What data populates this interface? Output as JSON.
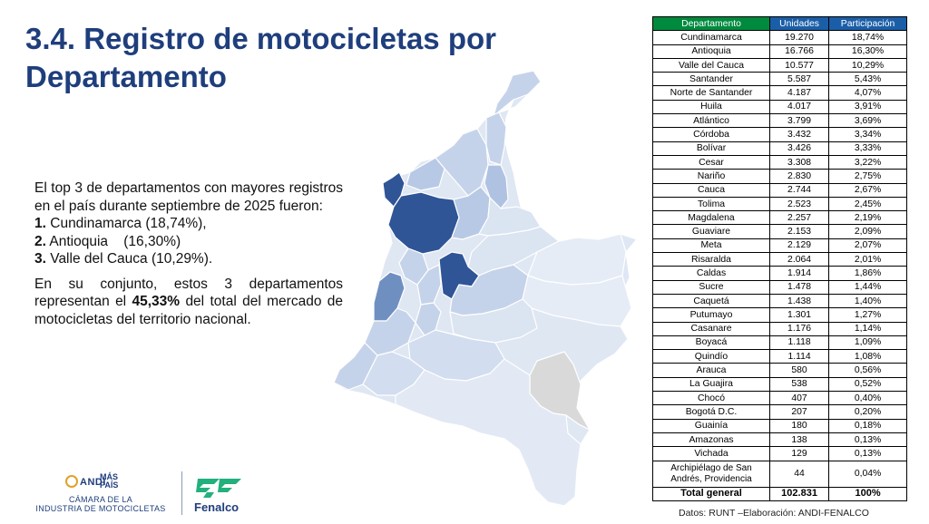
{
  "title": "3.4. Registro de motocicletas por Departamento",
  "intro": "El top 3 de departamentos con mayores registros en el país durante septiembre de 2025 fueron:",
  "top3": [
    {
      "num": "1.",
      "name": "Cundinamarca",
      "pct": "(18,74%),"
    },
    {
      "num": "2.",
      "name": "Antioquia",
      "pct": "(16,30%)"
    },
    {
      "num": "3.",
      "name": "Valle del Cauca",
      "pct": "(10,29%)."
    }
  ],
  "summary": {
    "before": "En su conjunto, estos 3 departamentos representan el",
    "highlight": "45,33%",
    "after": "del total del mercado de motocicletas del territorio nacional."
  },
  "table": {
    "headers": [
      "Departamento",
      "Unidades",
      "Participación"
    ],
    "rows": [
      [
        "Cundinamarca",
        "19.270",
        "18,74%"
      ],
      [
        "Antioquia",
        "16.766",
        "16,30%"
      ],
      [
        "Valle del Cauca",
        "10.577",
        "10,29%"
      ],
      [
        "Santander",
        "5.587",
        "5,43%"
      ],
      [
        "Norte de Santander",
        "4.187",
        "4,07%"
      ],
      [
        "Huila",
        "4.017",
        "3,91%"
      ],
      [
        "Atlántico",
        "3.799",
        "3,69%"
      ],
      [
        "Córdoba",
        "3.432",
        "3,34%"
      ],
      [
        "Bolívar",
        "3.426",
        "3,33%"
      ],
      [
        "Cesar",
        "3.308",
        "3,22%"
      ],
      [
        "Nariño",
        "2.830",
        "2,75%"
      ],
      [
        "Cauca",
        "2.744",
        "2,67%"
      ],
      [
        "Tolima",
        "2.523",
        "2,45%"
      ],
      [
        "Magdalena",
        "2.257",
        "2,19%"
      ],
      [
        "Guaviare",
        "2.153",
        "2,09%"
      ],
      [
        "Meta",
        "2.129",
        "2,07%"
      ],
      [
        "Risaralda",
        "2.064",
        "2,01%"
      ],
      [
        "Caldas",
        "1.914",
        "1,86%"
      ],
      [
        "Sucre",
        "1.478",
        "1,44%"
      ],
      [
        "Caquetá",
        "1.438",
        "1,40%"
      ],
      [
        "Putumayo",
        "1.301",
        "1,27%"
      ],
      [
        "Casanare",
        "1.176",
        "1,14%"
      ],
      [
        "Boyacá",
        "1.118",
        "1,09%"
      ],
      [
        "Quindío",
        "1.114",
        "1,08%"
      ],
      [
        "Arauca",
        "580",
        "0,56%"
      ],
      [
        "La Guajira",
        "538",
        "0,52%"
      ],
      [
        "Chocó",
        "407",
        "0,40%"
      ],
      [
        "Bogotá D.C.",
        "207",
        "0,20%"
      ],
      [
        "Guainía",
        "180",
        "0,18%"
      ],
      [
        "Amazonas",
        "138",
        "0,13%"
      ],
      [
        "Vichada",
        "129",
        "0,13%"
      ],
      [
        "Archipiélago de San Andrés, Providencia",
        "44",
        "0,04%"
      ]
    ],
    "total": [
      "Total general",
      "102.831",
      "100%"
    ]
  },
  "source": "Datos: RUNT –Elaboración: ANDI-FENALCO",
  "logos": {
    "andi": "ANDI",
    "mas_pais_1": "MÁS",
    "mas_pais_2": "PAÍS",
    "camara_1": "CÁMARA DE LA",
    "camara_2": "INDUSTRIA DE MOTOCICLETAS",
    "fenalco": "Fenalco"
  },
  "colors": {
    "title": "#1f3e7c",
    "header_green": "#008a3e",
    "header_blue": "#1b5ea8",
    "map_dark": "#2f5597",
    "map_medium": "#6f8fc0",
    "map_light": "#c5d3ea",
    "map_lightest": "#dfe7f3",
    "map_no_data": "#d9d9d9",
    "fenalco_green": "#22b07d"
  }
}
